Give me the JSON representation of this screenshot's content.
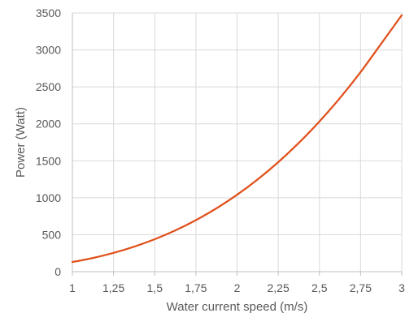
{
  "chart_data": {
    "type": "line",
    "xlabel": "Water current speed (m/s)",
    "ylabel": "Power (Watt)",
    "xlim": [
      1,
      3
    ],
    "ylim": [
      0,
      3500
    ],
    "x_ticks": [
      "1",
      "1,25",
      "1,5",
      "1,75",
      "2",
      "2,25",
      "2,5",
      "2,75",
      "3"
    ],
    "y_ticks": [
      "0",
      "500",
      "1000",
      "1500",
      "2000",
      "2500",
      "3000",
      "3500"
    ],
    "grid": true,
    "legend": "none",
    "series": [
      {
        "color": "#e0501b",
        "x": [
          1,
          1.125,
          1.25,
          1.375,
          1.5,
          1.625,
          1.75,
          1.875,
          2,
          2.125,
          2.25,
          2.375,
          2.5,
          2.625,
          2.75,
          2.875,
          3
        ],
        "y": [
          130,
          185,
          254,
          338,
          439,
          558,
          697,
          857,
          1040,
          1248,
          1481,
          1742,
          2031,
          2350,
          2700,
          3084,
          3470
        ]
      }
    ]
  }
}
